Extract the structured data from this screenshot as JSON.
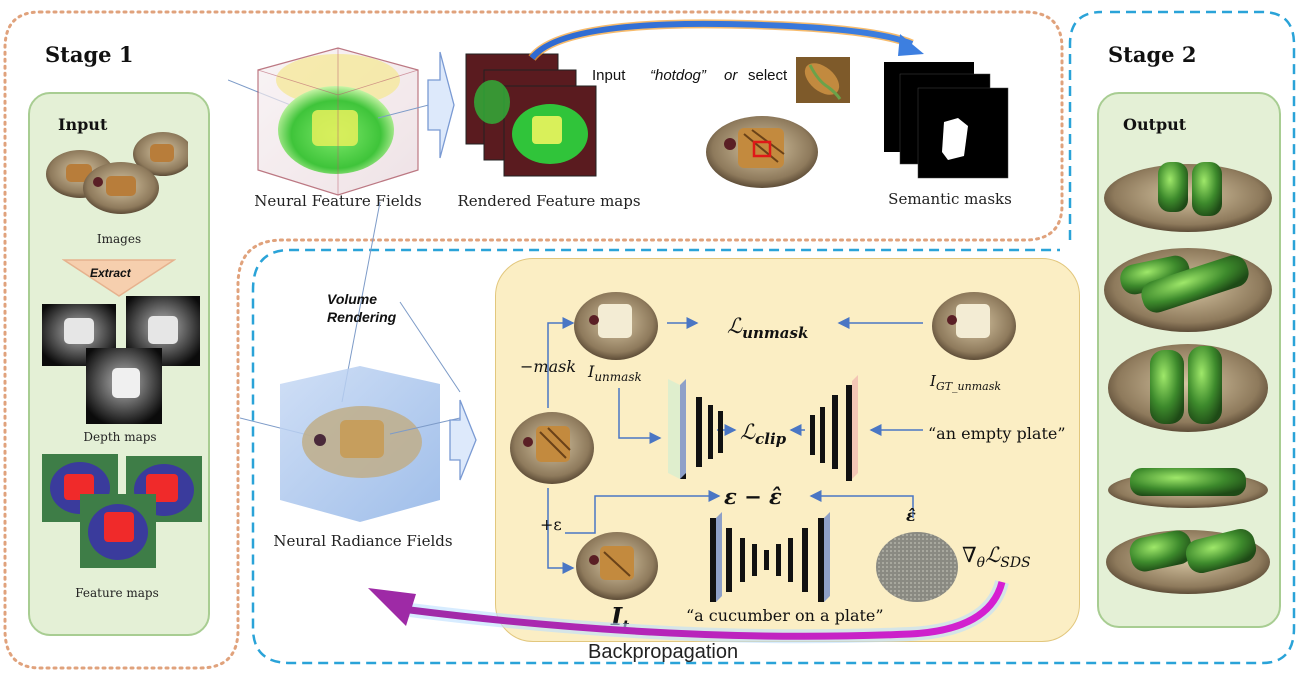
{
  "stage1": {
    "title": "Stage 1",
    "input_title": "Input",
    "images_label": "Images",
    "extract_label": "Extract",
    "depth_label": "Depth maps",
    "feature_label": "Feature maps"
  },
  "stage2": {
    "title": "Stage 2",
    "output_title": "Output"
  },
  "top": {
    "neural_feature_fields": "Neural Feature Fields",
    "rendered_feature_maps": "Rendered Feature maps",
    "semantic_masks": "Semantic masks",
    "input_word": "Input",
    "hotdog_word": "“hotdog”",
    "or_word": "or",
    "select_word": "select"
  },
  "bottom": {
    "volume_rendering_line1": "Volume",
    "volume_rendering_line2": "Rendering",
    "neural_radiance_fields": "Neural Radiance Fields",
    "minus_mask": "−mask",
    "plus_eps": "+ε",
    "i_unmask": "I",
    "i_unmask_sub": "unmask",
    "i_gt_unmask": "I",
    "i_gt_unmask_sub": "GT_unmask",
    "l_unmask": "ℒ",
    "l_unmask_sub": "unmask",
    "l_clip": "ℒ",
    "l_clip_sub": "clip",
    "empty_plate": "“an empty plate”",
    "eps_diff": "ε − ε̂",
    "eps_hat": "ε̂",
    "grad_sds": "∇",
    "grad_sub_theta": "θ",
    "grad_l": "ℒ",
    "grad_l_sub": "SDS",
    "i_t": "I",
    "i_t_sub": "t",
    "cucumber_prompt": "“a cucumber on a plate”",
    "backpropagation": "Backpropagation"
  },
  "colors": {
    "stage1_border": "#e0a27c",
    "stage2_border": "#2aa3d8",
    "green_panel": "#e4f0d6",
    "core_panel": "#fbeec4",
    "arrow_blue": "#4a76c4",
    "backprop_magenta": "#c21fc0"
  }
}
